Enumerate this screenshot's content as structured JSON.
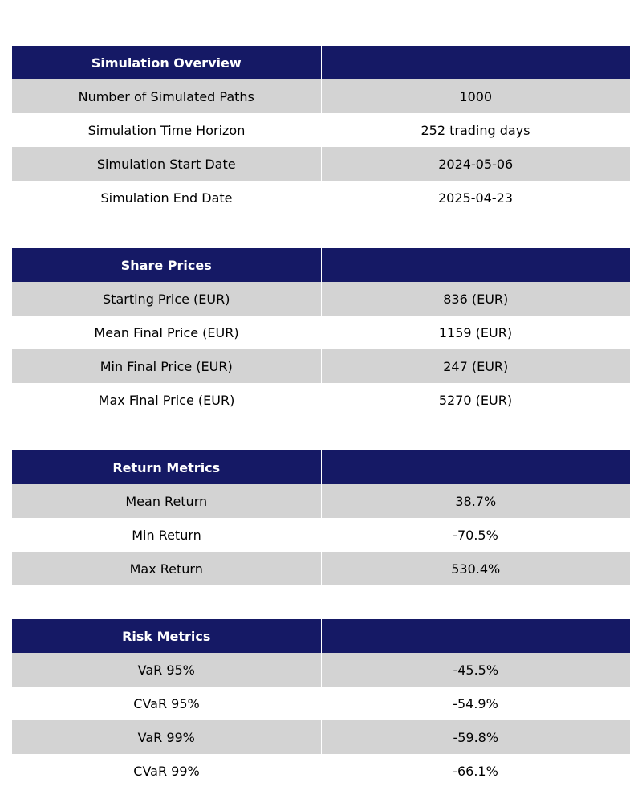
{
  "sections": [
    {
      "title": "Simulation Overview",
      "header_value": "",
      "rows": [
        {
          "label": "Number of Simulated Paths",
          "value": "1000"
        },
        {
          "label": "Simulation Time Horizon",
          "value": "252 trading days"
        },
        {
          "label": "Simulation Start Date",
          "value": "2024-05-06"
        },
        {
          "label": "Simulation End Date",
          "value": "2025-04-23"
        }
      ]
    },
    {
      "title": "Share Prices",
      "header_value": "",
      "rows": [
        {
          "label": "Starting Price (EUR)",
          "value": "836 (EUR)"
        },
        {
          "label": "Mean Final Price (EUR)",
          "value": "1159 (EUR)"
        },
        {
          "label": "Min Final Price (EUR)",
          "value": "247 (EUR)"
        },
        {
          "label": "Max Final Price (EUR)",
          "value": "5270 (EUR)"
        }
      ]
    },
    {
      "title": "Return Metrics",
      "header_value": "",
      "rows": [
        {
          "label": "Mean Return",
          "value": "38.7%"
        },
        {
          "label": "Min Return",
          "value": "-70.5%"
        },
        {
          "label": "Max Return",
          "value": "530.4%"
        }
      ]
    },
    {
      "title": "Risk Metrics",
      "header_value": "",
      "rows": [
        {
          "label": "VaR 95%",
          "value": "-45.5%"
        },
        {
          "label": "CVaR 95%",
          "value": "-54.9%"
        },
        {
          "label": "VaR 99%",
          "value": "-59.8%"
        },
        {
          "label": "CVaR 99%",
          "value": "-66.1%"
        }
      ]
    }
  ],
  "colors": {
    "header_bg": "#151965",
    "header_text": "#ffffff",
    "shaded_row_bg": "#d3d3d3",
    "plain_row_bg": "#ffffff"
  }
}
